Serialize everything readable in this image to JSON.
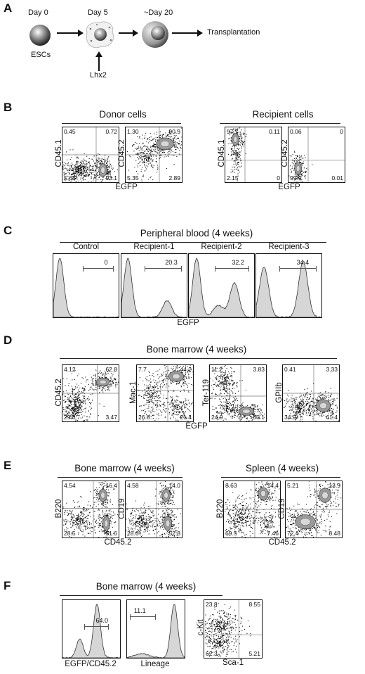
{
  "panels": {
    "A": {
      "letter": "A",
      "steps": [
        {
          "label": "Day 0",
          "sub": "ESCs"
        },
        {
          "label": "Day 5",
          "sub": "Lhx2"
        },
        {
          "label": "~Day 20"
        }
      ],
      "final": "Transplantation"
    },
    "B": {
      "letter": "B",
      "groups": [
        "Donor cells",
        "Recipient cells"
      ],
      "plots": [
        {
          "y": "CD45.1",
          "x": "EGFP",
          "q": [
            "0.45",
            "0.72",
            "5.68",
            "93.1"
          ]
        },
        {
          "y": "CD45.2",
          "x": "",
          "q": [
            "1.30",
            "90.5",
            "5.35",
            "2.89"
          ]
        },
        {
          "y": "CD45.1",
          "x": "EGFP",
          "q": [
            "97.7",
            "0.11",
            "2.15",
            "0"
          ]
        },
        {
          "y": "CD45.2",
          "x": "",
          "q": [
            "0.06",
            "0",
            "99.9",
            "0.01"
          ]
        }
      ]
    },
    "C": {
      "letter": "C",
      "title": "Peripheral blood (4 weeks)",
      "xlabel": "EGFP",
      "hists": [
        {
          "name": "Control",
          "value": "0"
        },
        {
          "name": "Recipient-1",
          "value": "20.3"
        },
        {
          "name": "Recipient-2",
          "value": "32.2"
        },
        {
          "name": "Recipient-3",
          "value": "34.4"
        }
      ]
    },
    "D": {
      "letter": "D",
      "title": "Bone marrow (4 weeks)",
      "xlabel": "EGFP",
      "plots": [
        {
          "y": "CD45.2",
          "q": [
            "4.12",
            "62.8",
            "29.6",
            "3.47"
          ]
        },
        {
          "y": "Mac-1",
          "q": [
            "7.7",
            "44.2",
            "26.8",
            "21.4"
          ]
        },
        {
          "y": "Ter-119",
          "q": [
            "11.2",
            "3.83",
            "24.9",
            "60.1"
          ]
        },
        {
          "y": "GPIIb",
          "q": [
            "0.41",
            "3.33",
            "34.9",
            "61.4"
          ]
        }
      ]
    },
    "E": {
      "letter": "E",
      "groups": [
        "Bone marrow (4 weeks)",
        "Spleen (4 weeks)"
      ],
      "xlabel": "CD45.2",
      "plots": [
        {
          "y": "B220",
          "q": [
            "4.54",
            "16.4",
            "28.5",
            "51.6"
          ]
        },
        {
          "y": "CD19",
          "q": [
            "4.58",
            "14.0",
            "28.6",
            "52.8"
          ]
        },
        {
          "y": "B220",
          "q": [
            "8.63",
            "14.4",
            "69.5",
            "7.46"
          ]
        },
        {
          "y": "CD19",
          "q": [
            "5.21",
            "13.9",
            "72.4",
            "8.48"
          ]
        }
      ]
    },
    "F": {
      "letter": "F",
      "title": "Bone marrow  (4 weeks)",
      "hists": [
        {
          "xlabel": "EGFP/CD45.2",
          "value": "64.0"
        },
        {
          "xlabel": "Lineage",
          "value": "11.1"
        }
      ],
      "scatter": {
        "y": "c-Kit",
        "x": "Sca-1",
        "q": [
          "23.8",
          "8.55",
          "62.3",
          "5.21"
        ]
      }
    }
  }
}
